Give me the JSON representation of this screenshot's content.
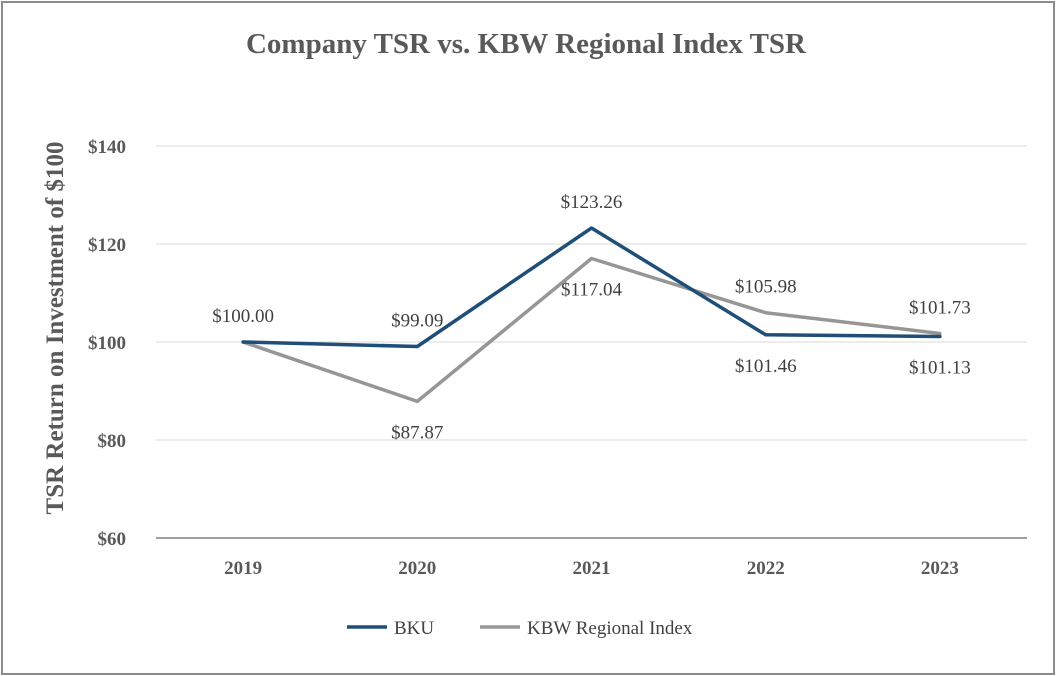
{
  "chart_data": {
    "type": "line",
    "title": "Company TSR vs. KBW Regional Index TSR",
    "xlabel": "",
    "ylabel": "TSR Return on Investment of $100",
    "categories": [
      "2019",
      "2020",
      "2021",
      "2022",
      "2023"
    ],
    "ylim": [
      60,
      140
    ],
    "yticks": [
      60,
      80,
      100,
      120,
      140
    ],
    "ytick_labels": [
      "$60",
      "$80",
      "$100",
      "$120",
      "$140"
    ],
    "grid": true,
    "legend_position": "bottom",
    "series": [
      {
        "name": "BKU",
        "color": "#1f4e79",
        "values": [
          100.0,
          99.09,
          123.26,
          101.46,
          101.13
        ],
        "labels": [
          "$100.00",
          "$99.09",
          "$123.26",
          "$101.46",
          "$101.13"
        ]
      },
      {
        "name": "KBW Regional Index",
        "color": "#969696",
        "values": [
          100.0,
          87.87,
          117.04,
          105.98,
          101.73
        ],
        "labels": [
          "",
          "$87.87",
          "$117.04",
          "$105.98",
          "$101.73"
        ]
      }
    ]
  }
}
